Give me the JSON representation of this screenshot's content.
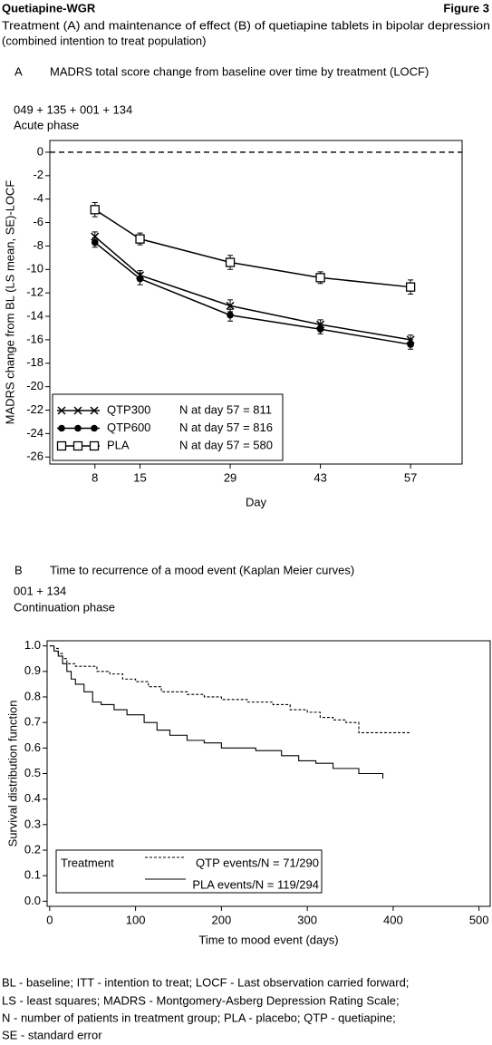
{
  "header": {
    "left": "Quetiapine-WGR",
    "right": "Figure 3",
    "subtitle": [
      "Treatment (A) and maintenance of effect (B) of quetiapine tablets in bipolar depression",
      "(combined intention to treat population)"
    ]
  },
  "chart_data": [
    {
      "type": "line",
      "panel": "A",
      "title": "MADRS total score change from baseline over time by treatment (LOCF)",
      "notes": [
        "049 + 135 + 001 + 134",
        "Acute phase"
      ],
      "x": [
        8,
        15,
        29,
        43,
        57
      ],
      "xlim": [
        1,
        65
      ],
      "xticks": [
        8,
        15,
        29,
        43,
        57
      ],
      "ylim": [
        -26.6,
        1
      ],
      "yticks": [
        0,
        -2,
        -4,
        -6,
        -8,
        -10,
        -12,
        -14,
        -16,
        -18,
        -20,
        -22,
        -24,
        -26
      ],
      "xlabel": "Day",
      "ylabel": "MADRS change from BL (LS mean, SE)-LOCF",
      "hline": 0,
      "legend": "lower left",
      "series": [
        {
          "name": "QTP300",
          "marker": "x",
          "color": "#000000",
          "values": [
            -7.2,
            -10.5,
            -13.1,
            -14.7,
            -16.0
          ],
          "errors": [
            0.4,
            0.4,
            0.5,
            0.4,
            0.4
          ],
          "legend_note": "N at day 57 = 811"
        },
        {
          "name": "QTP600",
          "marker": "circle",
          "color": "#000000",
          "values": [
            -7.7,
            -10.8,
            -13.9,
            -15.1,
            -16.4
          ],
          "errors": [
            0.4,
            0.5,
            0.5,
            0.4,
            0.4
          ],
          "legend_note": "N at day 57 = 816"
        },
        {
          "name": "PLA",
          "marker": "square",
          "color": "#000000",
          "values": [
            -4.9,
            -7.4,
            -9.4,
            -10.7,
            -11.5
          ],
          "errors": [
            0.6,
            0.5,
            0.6,
            0.5,
            0.6
          ],
          "legend_note": "N at day 57 = 580"
        }
      ]
    },
    {
      "type": "step",
      "panel": "B",
      "title": "Time to recurrence of a mood event (Kaplan Meier curves)",
      "notes": [
        "001 + 134",
        "Continuation phase"
      ],
      "xlim": [
        -3,
        513
      ],
      "xticks": [
        0,
        100,
        200,
        300,
        400,
        500
      ],
      "ylim": [
        -0.02,
        1.02
      ],
      "yticks": [
        {
          "value": 1,
          "label": "1.0"
        },
        0.9,
        0.8,
        0.7,
        0.6,
        0.5,
        0.4,
        0.3,
        0.2,
        0.1,
        {
          "value": 0,
          "label": "0.0"
        }
      ],
      "xlabel": "Time to mood event (days)",
      "ylabel": "Survival distribution function",
      "legend_title": "Treatment",
      "legend": "lower left",
      "series": [
        {
          "name": "QTP events/N = 71/290",
          "dash": "dashed",
          "color": "#000000",
          "x": [
            0,
            5,
            10,
            15,
            20,
            30,
            45,
            55,
            70,
            85,
            100,
            115,
            130,
            160,
            180,
            200,
            230,
            260,
            280,
            300,
            315,
            330,
            345,
            360,
            420
          ],
          "values": [
            1.0,
            0.99,
            0.97,
            0.95,
            0.93,
            0.92,
            0.92,
            0.9,
            0.89,
            0.87,
            0.86,
            0.84,
            0.82,
            0.81,
            0.8,
            0.79,
            0.78,
            0.77,
            0.75,
            0.74,
            0.72,
            0.71,
            0.7,
            0.66,
            0.66
          ]
        },
        {
          "name": "PLA events/N = 119/294",
          "dash": "solid",
          "color": "#000000",
          "x": [
            0,
            5,
            10,
            15,
            20,
            25,
            30,
            40,
            50,
            60,
            75,
            90,
            110,
            125,
            140,
            160,
            180,
            200,
            240,
            270,
            290,
            310,
            330,
            360,
            388
          ],
          "values": [
            1.0,
            0.98,
            0.96,
            0.93,
            0.9,
            0.87,
            0.85,
            0.82,
            0.78,
            0.77,
            0.75,
            0.73,
            0.7,
            0.67,
            0.65,
            0.63,
            0.62,
            0.6,
            0.59,
            0.57,
            0.55,
            0.54,
            0.52,
            0.5,
            0.48
          ]
        }
      ]
    }
  ],
  "footnotes": [
    "BL - baseline; ITT - intention to treat; LOCF - Last observation carried forward;",
    "LS - least squares; MADRS - Montgomery-Asberg Depression Rating Scale;",
    "N - number of patients in treatment group; PLA - placebo; QTP - quetiapine;",
    "SE - standard error"
  ]
}
